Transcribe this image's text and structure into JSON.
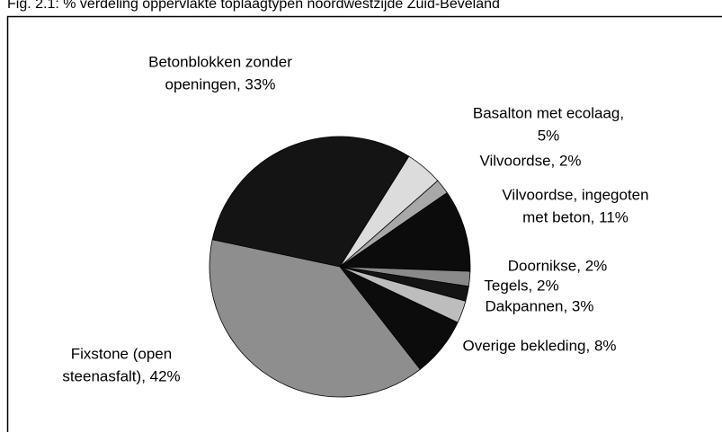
{
  "chart_data": {
    "type": "pie",
    "title": "Fig. 2.1: % verdeling oppervlakte toplaagtypen noordwestzijde Zuid-Beveland",
    "categories": [
      "Betonblokken zonder openingen",
      "Basalton met ecolaag",
      "Vilvoordse",
      "Vilvoordse, ingegoten met beton",
      "Doornikse",
      "Tegels",
      "Dakpannen",
      "Overige bekleding",
      "Fixstone (open steenasfalt)"
    ],
    "labels": [
      [
        "Betonblokken zonder",
        "openingen, 33%"
      ],
      [
        "Basalton met ecolaag,",
        "5%"
      ],
      [
        "Vilvoordse, 2%"
      ],
      [
        "Vilvoordse, ingegoten",
        "met beton, 11%"
      ],
      [
        "Doornikse, 2%"
      ],
      [
        "Tegels, 2%"
      ],
      [
        "Dakpannen, 3%"
      ],
      [
        "Overige bekleding, 8%"
      ],
      [
        "Fixstone (open",
        "steenasfalt), 42%"
      ]
    ],
    "values": [
      33,
      5,
      2,
      11,
      2,
      2,
      3,
      8,
      42
    ],
    "colors": [
      "#141414",
      "#dcdcdc",
      "#a8a8a8",
      "#0c0c0c",
      "#8a8a8a",
      "#141414",
      "#bdbdbd",
      "#0c0c0c",
      "#8e8e8e"
    ]
  }
}
